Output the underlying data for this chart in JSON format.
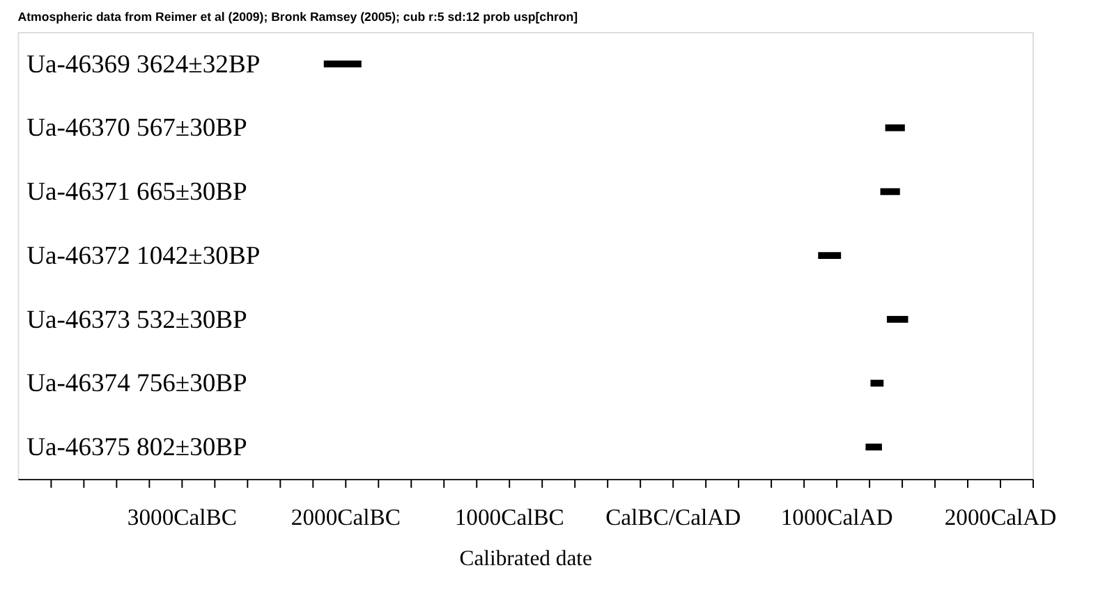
{
  "chart_data": {
    "type": "bar",
    "orientation": "horizontal",
    "title": "Atmospheric data from Reimer et al (2009); Bronk Ramsey (2005); cub r:5 sd:12 prob usp[chron]",
    "xlabel": "Calibrated date",
    "categories": [
      "Ua-46369  3624±32BP",
      "Ua-46370  567±30BP",
      "Ua-46371  665±30BP",
      "Ua-46372  1042±30BP",
      "Ua-46373  532±30BP",
      "Ua-46374  756±30BP",
      "Ua-46375  802±30BP"
    ],
    "base": [
      -2130,
      1300,
      1270,
      890,
      1310,
      1210,
      1180
    ],
    "values": [
      230,
      120,
      120,
      140,
      130,
      80,
      100
    ],
    "color": "#000000",
    "xlim": [
      -4000,
      2200
    ],
    "xticks": [
      {
        "value": -3800,
        "label": null
      },
      {
        "value": -3600,
        "label": null
      },
      {
        "value": -3400,
        "label": null
      },
      {
        "value": -3200,
        "label": null
      },
      {
        "value": -3000,
        "label": "3000CalBC"
      },
      {
        "value": -2800,
        "label": null
      },
      {
        "value": -2600,
        "label": null
      },
      {
        "value": -2400,
        "label": null
      },
      {
        "value": -2200,
        "label": null
      },
      {
        "value": -2000,
        "label": "2000CalBC"
      },
      {
        "value": -1800,
        "label": null
      },
      {
        "value": -1600,
        "label": null
      },
      {
        "value": -1400,
        "label": null
      },
      {
        "value": -1200,
        "label": null
      },
      {
        "value": -1000,
        "label": "1000CalBC"
      },
      {
        "value": -800,
        "label": null
      },
      {
        "value": -600,
        "label": null
      },
      {
        "value": -400,
        "label": null
      },
      {
        "value": -200,
        "label": null
      },
      {
        "value": 0,
        "label": "CalBC/CalAD"
      },
      {
        "value": 200,
        "label": null
      },
      {
        "value": 400,
        "label": null
      },
      {
        "value": 600,
        "label": null
      },
      {
        "value": 800,
        "label": null
      },
      {
        "value": 1000,
        "label": "1000CalAD"
      },
      {
        "value": 1200,
        "label": null
      },
      {
        "value": 1400,
        "label": null
      },
      {
        "value": 1600,
        "label": null
      },
      {
        "value": 1800,
        "label": null
      },
      {
        "value": 2000,
        "label": "2000CalAD"
      },
      {
        "value": 2200,
        "label": null
      }
    ],
    "grid": false
  }
}
